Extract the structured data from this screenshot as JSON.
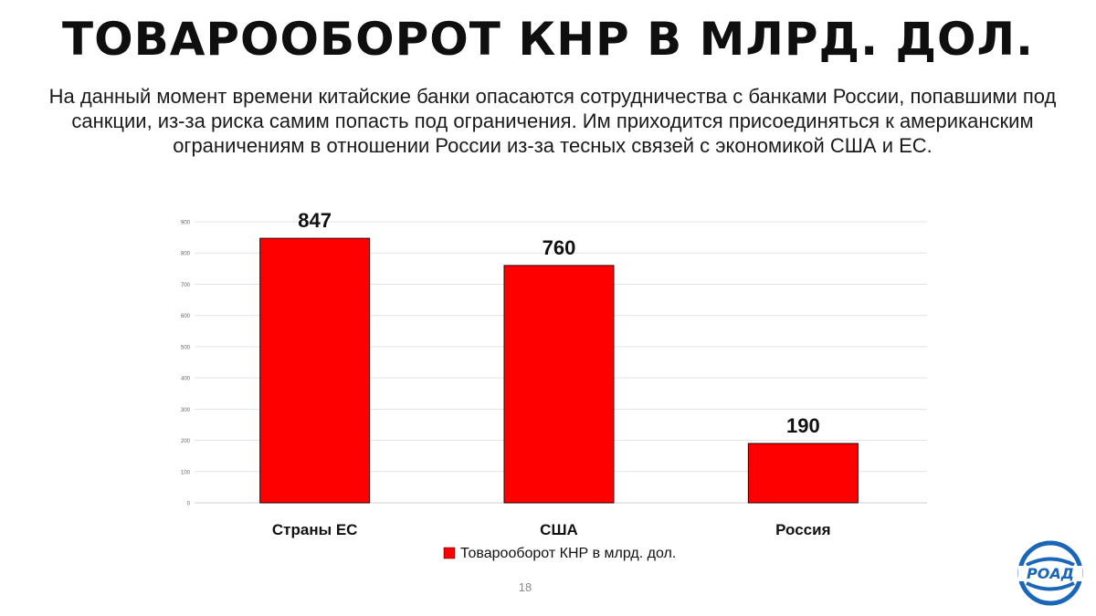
{
  "slide": {
    "title": "ТОВАРООБОРОТ КНР В МЛРД. ДОЛ.",
    "paragraph": "На данный момент времени китайские банки опасаются сотрудничества с банками России, попавшими под санкции, из-за риска самим попасть под ограничения. Им приходится присоединяться к американским ограничениям в отношении России из-за тесных связей с экономикой США и ЕС.",
    "page_number": "18",
    "logo_text": "РОАД"
  },
  "colors": {
    "bar": "#ff0000",
    "bar_stroke": "#2a0000",
    "grid": "#e3e3e3",
    "logo": "#1a66b8"
  },
  "chart_data": {
    "type": "bar",
    "categories": [
      "Страны ЕС",
      "США",
      "Россия"
    ],
    "series": [
      {
        "name": "Товарооборот КНР в млрд. дол.",
        "values": [
          847,
          760,
          190
        ]
      }
    ],
    "data_labels": [
      "847",
      "760",
      "190"
    ],
    "ylim": [
      0,
      900
    ],
    "yticks": [
      0,
      100,
      200,
      300,
      400,
      500,
      600,
      700,
      800,
      900
    ],
    "grid": true,
    "legend": "bottom",
    "title": "",
    "xlabel": "",
    "ylabel": ""
  }
}
